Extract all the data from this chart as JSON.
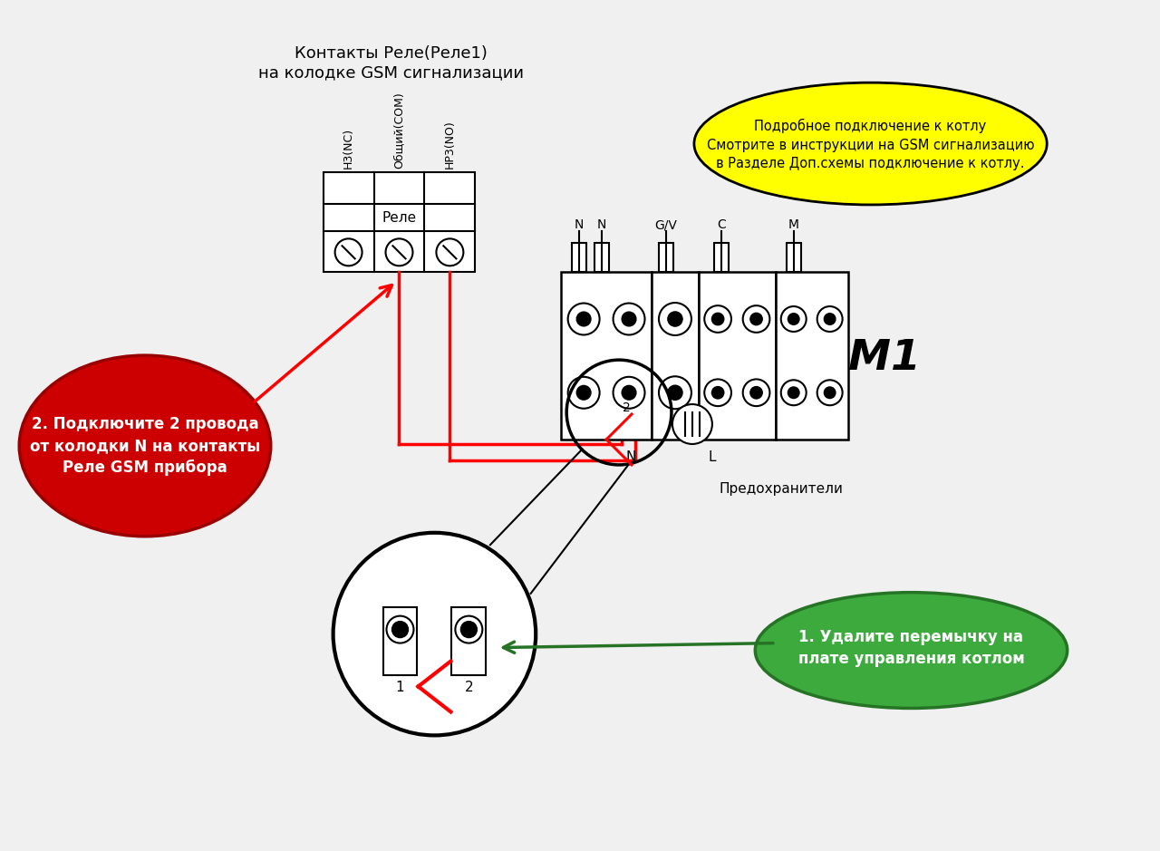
{
  "bg_color": "#f0f0f0",
  "title_top_line1": "Контакты Реле(Реле1)",
  "title_top_line2": "на колодке GSM сигнализации",
  "yellow_text_line1": "Подробное подключение к котлу",
  "yellow_text_line2": "Смотрите в инструкции на GSM сигнализацию",
  "yellow_text_line3": "в Разделе Доп.схемы подключение к котлу.",
  "red_text_line1": "2. Подключите 2 провода",
  "red_text_line2": "от колодки N на контакты",
  "red_text_line3": "Реле GSM прибора",
  "green_text_line1": "1. Удалите перемычку на",
  "green_text_line2": "плате управления котлом",
  "predohraniteli": "Предохранители",
  "relay_label": "Реле",
  "M1_label": "M1",
  "term_nc": "H3(NC)",
  "term_com": "Общий(COM)",
  "term_no": "HP3(NO)"
}
